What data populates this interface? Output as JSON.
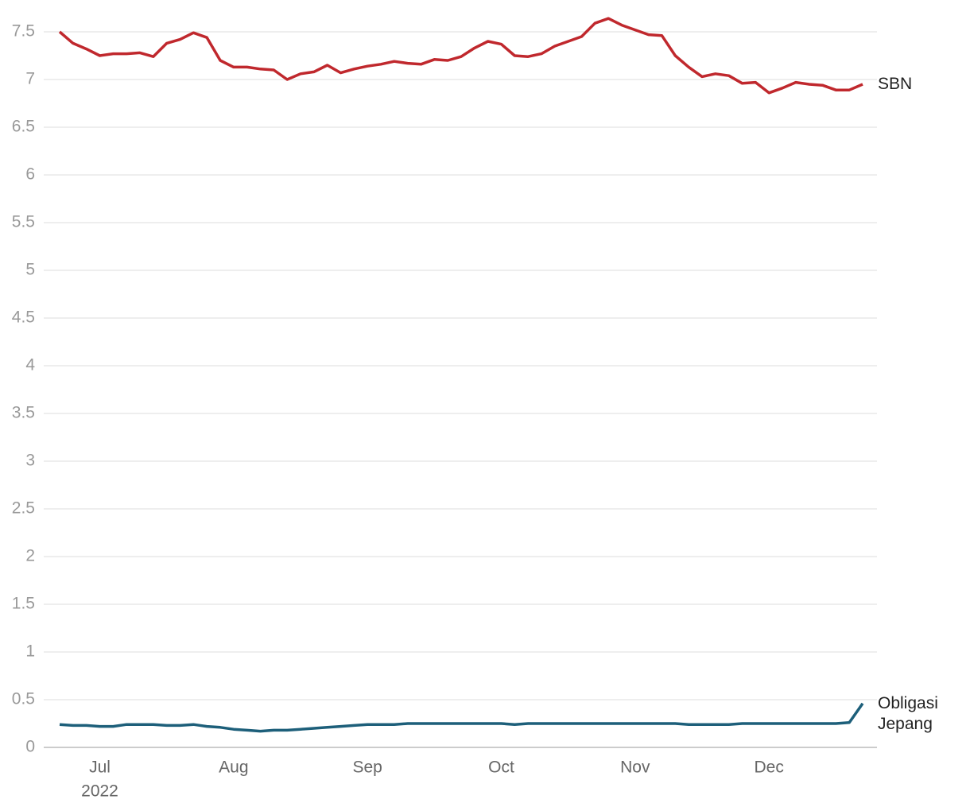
{
  "chart_data": {
    "type": "line",
    "categories": [
      null,
      null,
      null,
      "Jul",
      null,
      null,
      null,
      null,
      null,
      null,
      null,
      null,
      null,
      "Aug",
      null,
      null,
      null,
      null,
      null,
      null,
      null,
      null,
      null,
      "Sep",
      null,
      null,
      null,
      null,
      null,
      null,
      null,
      null,
      null,
      "Oct",
      null,
      null,
      null,
      null,
      null,
      null,
      null,
      null,
      null,
      "Nov",
      null,
      null,
      null,
      null,
      null,
      null,
      null,
      null,
      null,
      "Dec",
      null,
      null,
      null,
      null,
      null,
      null,
      null
    ],
    "x_year_label": "2022",
    "series": [
      {
        "name": "SBN",
        "color": "#c0282d",
        "values": [
          7.5,
          7.38,
          7.32,
          7.25,
          7.27,
          7.27,
          7.28,
          7.24,
          7.38,
          7.42,
          7.49,
          7.44,
          7.2,
          7.13,
          7.13,
          7.11,
          7.1,
          7.0,
          7.06,
          7.08,
          7.15,
          7.07,
          7.11,
          7.14,
          7.16,
          7.19,
          7.17,
          7.16,
          7.21,
          7.2,
          7.24,
          7.33,
          7.4,
          7.37,
          7.25,
          7.24,
          7.27,
          7.35,
          7.4,
          7.45,
          7.59,
          7.64,
          7.57,
          7.52,
          7.47,
          7.46,
          7.25,
          7.13,
          7.03,
          7.06,
          7.04,
          6.96,
          6.97,
          6.86,
          6.91,
          6.97,
          6.95,
          6.94,
          6.89,
          6.89,
          6.95
        ]
      },
      {
        "name": "Obligasi Jepang",
        "color": "#1d5f7a",
        "values": [
          0.24,
          0.23,
          0.23,
          0.22,
          0.22,
          0.24,
          0.24,
          0.24,
          0.23,
          0.23,
          0.24,
          0.22,
          0.21,
          0.19,
          0.18,
          0.17,
          0.18,
          0.18,
          0.19,
          0.2,
          0.21,
          0.22,
          0.23,
          0.24,
          0.24,
          0.24,
          0.25,
          0.25,
          0.25,
          0.25,
          0.25,
          0.25,
          0.25,
          0.25,
          0.24,
          0.25,
          0.25,
          0.25,
          0.25,
          0.25,
          0.25,
          0.25,
          0.25,
          0.25,
          0.25,
          0.25,
          0.25,
          0.24,
          0.24,
          0.24,
          0.24,
          0.25,
          0.25,
          0.25,
          0.25,
          0.25,
          0.25,
          0.25,
          0.25,
          0.26,
          0.46
        ]
      }
    ],
    "ylim": [
      0,
      7.5
    ],
    "yticks": [
      0,
      0.5,
      1,
      1.5,
      2,
      2.5,
      3,
      3.5,
      4,
      4.5,
      5,
      5.5,
      6,
      6.5,
      7,
      7.5
    ],
    "grid": true
  }
}
